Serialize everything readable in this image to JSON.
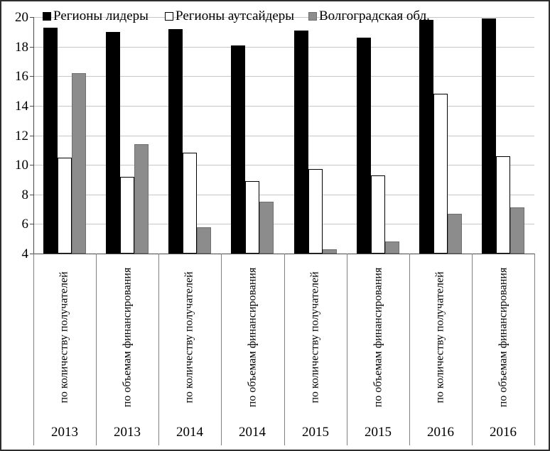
{
  "chart_data": {
    "type": "bar",
    "title": "",
    "grid": true,
    "legend_position": "top-inside",
    "categories": [
      {
        "group": "по количеству получателей",
        "year": "2013"
      },
      {
        "group": "по объемам финансирования",
        "year": "2013"
      },
      {
        "group": "по количеству получателей",
        "year": "2014"
      },
      {
        "group": "по объемам финансирования",
        "year": "2014"
      },
      {
        "group": "по количеству получателей",
        "year": "2015"
      },
      {
        "group": "по объемам финансирования",
        "year": "2015"
      },
      {
        "group": "по количеству получателей",
        "year": "2016"
      },
      {
        "group": "по объемам финансирования",
        "year": "2016"
      }
    ],
    "series": [
      {
        "name": "Регионы лидеры",
        "color": "#000000",
        "border": "#000000",
        "values": [
          19.3,
          19.0,
          19.2,
          18.1,
          19.1,
          18.6,
          19.8,
          19.9
        ]
      },
      {
        "name": "Регионы аутсайдеры",
        "color": "#ffffff",
        "border": "#000000",
        "values": [
          10.5,
          9.2,
          10.8,
          8.9,
          9.7,
          9.3,
          14.8,
          10.6
        ]
      },
      {
        "name": "Волгоградская обл.",
        "color": "#8c8c8c",
        "border": "#6f6f6f",
        "values": [
          16.2,
          11.4,
          5.8,
          7.5,
          4.3,
          4.8,
          6.7,
          7.1
        ]
      }
    ],
    "y_axis": {
      "min": 4,
      "max": 20,
      "step": 2,
      "tick_labels": [
        "20",
        "18",
        "16",
        "14",
        "12",
        "10",
        "8",
        "6",
        "4"
      ]
    }
  },
  "colors": {
    "background": "#ffffff",
    "frame_border": "#2e2e2e",
    "gridline": "#c6c6c6",
    "axis": "#4a4a4a",
    "separator": "#7f7f7f"
  }
}
